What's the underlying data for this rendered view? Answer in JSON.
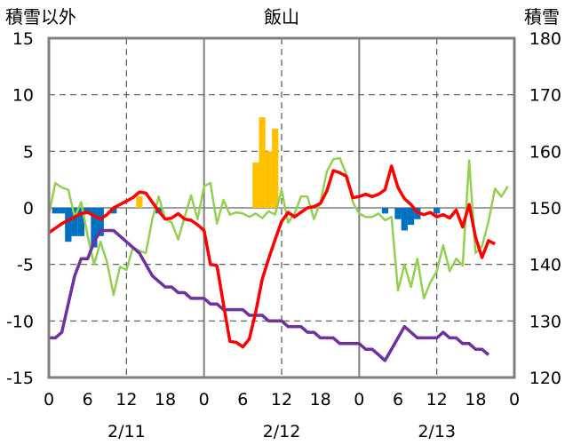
{
  "chart_data": {
    "type": "line",
    "title": "飯山",
    "ylabel_left": "積雪以外",
    "ylabel_right": "積雪",
    "ylim_left": [
      -15,
      15
    ],
    "ylim_right": [
      120,
      180
    ],
    "yticks_left": [
      "15",
      "10",
      "5",
      "0",
      "-5",
      "-10",
      "-15"
    ],
    "yticks_right": [
      "180",
      "170",
      "160",
      "150",
      "140",
      "130",
      "120"
    ],
    "x_ticks": [
      "0",
      "6",
      "12",
      "18",
      "0",
      "6",
      "12",
      "18",
      "0",
      "6",
      "12",
      "18",
      "0"
    ],
    "date_labels": [
      "2/11",
      "2/12",
      "2/13"
    ],
    "colors": {
      "temperature": "#ff0000",
      "wind": "#92d050",
      "snow_depth": "#7030a0",
      "sunshine": "#ffc000",
      "precip": "#0070c0"
    },
    "series": [
      {
        "key": "temperature",
        "axis": "left",
        "values": [
          -2.2,
          -1.8,
          -1.4,
          -1.1,
          -0.8,
          -0.5,
          -0.4,
          -0.7,
          -1.0,
          -0.6,
          0.0,
          0.3,
          0.6,
          0.9,
          1.4,
          1.3,
          0.5,
          -0.3,
          -1.0,
          -0.9,
          -0.5,
          -1.0,
          -1.1,
          -1.5,
          -2.0,
          -5.0,
          -5.1,
          -8.5,
          -11.8,
          -11.9,
          -12.3,
          -11.6,
          -9.2,
          -6.3,
          -4.5,
          -2.8,
          -1.2,
          -0.4,
          -0.8,
          -0.4,
          0.0,
          0.1,
          0.4,
          1.5,
          3.3,
          3.1,
          2.8,
          0.9,
          1.0,
          1.2,
          1.0,
          1.2,
          1.6,
          3.7,
          1.8,
          0.8,
          0.3,
          -0.4,
          -0.6,
          -0.4,
          -0.8,
          -0.6,
          -0.9,
          -0.2,
          -1.7,
          0.3,
          -2.6,
          -4.4,
          -2.9,
          -3.2
        ]
      },
      {
        "key": "wind",
        "axis": "left",
        "values": [
          -0.6,
          2.2,
          1.8,
          1.6,
          -0.8,
          0.5,
          -2.5,
          -5.0,
          -3.0,
          -4.8,
          -7.7,
          -5.2,
          -5.5,
          -3.5,
          -3.8,
          -4.0,
          -1.0,
          1.0,
          -1.0,
          -1.3,
          -2.8,
          -0.8,
          1.1,
          -1.0,
          1.9,
          2.2,
          -1.4,
          0.7,
          -0.6,
          -0.4,
          -0.5,
          -0.8,
          -0.5,
          -0.9,
          -0.3,
          -0.6,
          1.6,
          -1.3,
          -0.5,
          1.0,
          1.0,
          -1.0,
          0.5,
          3.2,
          4.3,
          4.4,
          3.0,
          0.5,
          -0.5,
          -0.8,
          -0.8,
          -0.5,
          -1.1,
          -0.8,
          -7.3,
          -5.0,
          -7.0,
          -4.5,
          -8.0,
          -6.6,
          -5.6,
          -3.3,
          -5.6,
          -4.5,
          -5.1,
          4.2,
          -4.0,
          -3.4,
          -1.2,
          1.7,
          1.0,
          1.9
        ]
      },
      {
        "key": "snow_depth",
        "axis": "right",
        "values": [
          127,
          127,
          128,
          133,
          138,
          141,
          141,
          144,
          146,
          146,
          146,
          145,
          144,
          143,
          142,
          140,
          138,
          137,
          136,
          136,
          135,
          135,
          134,
          134,
          134,
          133,
          133,
          132,
          132,
          132,
          132,
          131,
          131,
          131,
          130,
          130,
          130,
          129,
          129,
          129,
          128,
          128,
          127,
          127,
          127,
          126,
          126,
          126,
          126,
          125,
          125,
          124,
          123,
          125,
          127,
          129,
          128,
          127,
          127,
          127,
          127,
          128,
          127,
          127,
          126,
          126,
          125,
          125,
          124
        ]
      },
      {
        "key": "sunshine",
        "axis": "left",
        "kind": "bar",
        "values": [
          0,
          0,
          0,
          0,
          0,
          0,
          0,
          0,
          0,
          0,
          0,
          0,
          0,
          0,
          1.0,
          0,
          0,
          0,
          0,
          0,
          0,
          0,
          0,
          0,
          0,
          0,
          0,
          0,
          0,
          0,
          0,
          0,
          4.0,
          8.0,
          5.0,
          7.0,
          0,
          0,
          0,
          0,
          0,
          0,
          0,
          0,
          0,
          0,
          0,
          0,
          0,
          0,
          0,
          0,
          0,
          0,
          0,
          0,
          0,
          0,
          0,
          0,
          0,
          0,
          0,
          0,
          0,
          0,
          0,
          0,
          0,
          0,
          0,
          0
        ]
      },
      {
        "key": "precip",
        "axis": "left",
        "kind": "bar",
        "values": [
          0,
          -0.5,
          -0.5,
          -3.0,
          -2.5,
          -2.5,
          -0.5,
          -3.5,
          -2.5,
          0,
          -0.5,
          0,
          0,
          0,
          0,
          0,
          0,
          -0.5,
          0,
          0,
          0,
          0,
          0,
          0,
          0,
          0,
          0,
          0,
          0,
          0,
          0,
          0,
          0,
          0,
          0,
          0,
          0,
          0,
          0,
          0,
          0,
          0,
          0,
          0,
          0,
          0,
          0,
          0,
          0,
          0,
          0,
          0,
          -0.5,
          0,
          -1.0,
          -2.0,
          -1.5,
          -1.0,
          0,
          0,
          -0.5,
          0,
          0,
          0,
          0,
          0,
          0,
          0,
          0,
          0,
          0,
          0
        ]
      }
    ],
    "grid_x_dashed": true
  }
}
